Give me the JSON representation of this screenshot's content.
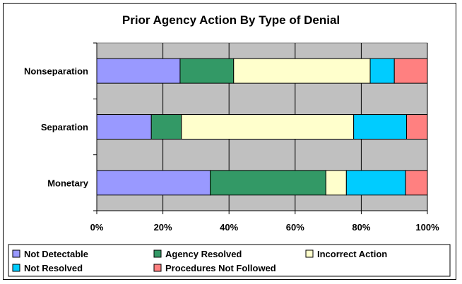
{
  "chart_data": {
    "type": "bar",
    "orientation": "horizontal",
    "stacked": "percent",
    "title": "Prior Agency Action By Type of Denial",
    "categories": [
      "Nonseparation",
      "Separation",
      "Monetary"
    ],
    "series": [
      {
        "name": "Not Detectable",
        "color": "#9999ff",
        "values": [
          25.2,
          16.5,
          34.3
        ]
      },
      {
        "name": "Agency Resolved",
        "color": "#339966",
        "values": [
          16.2,
          9.1,
          35.0
        ]
      },
      {
        "name": "Incorrect Action",
        "color": "#ffffcc",
        "values": [
          41.3,
          52.1,
          6.2
        ]
      },
      {
        "name": "Not Resolved",
        "color": "#00ccff",
        "values": [
          7.3,
          16.0,
          17.9
        ]
      },
      {
        "name": "Procedures Not Followed",
        "color": "#ff8080",
        "values": [
          10.0,
          6.3,
          6.6
        ]
      }
    ],
    "xlim": [
      0,
      100
    ],
    "xticks": [
      "0%",
      "20%",
      "40%",
      "60%",
      "80%",
      "100%"
    ],
    "plot_background": "#c0c0c0",
    "grid": true,
    "legend_position": "bottom"
  }
}
